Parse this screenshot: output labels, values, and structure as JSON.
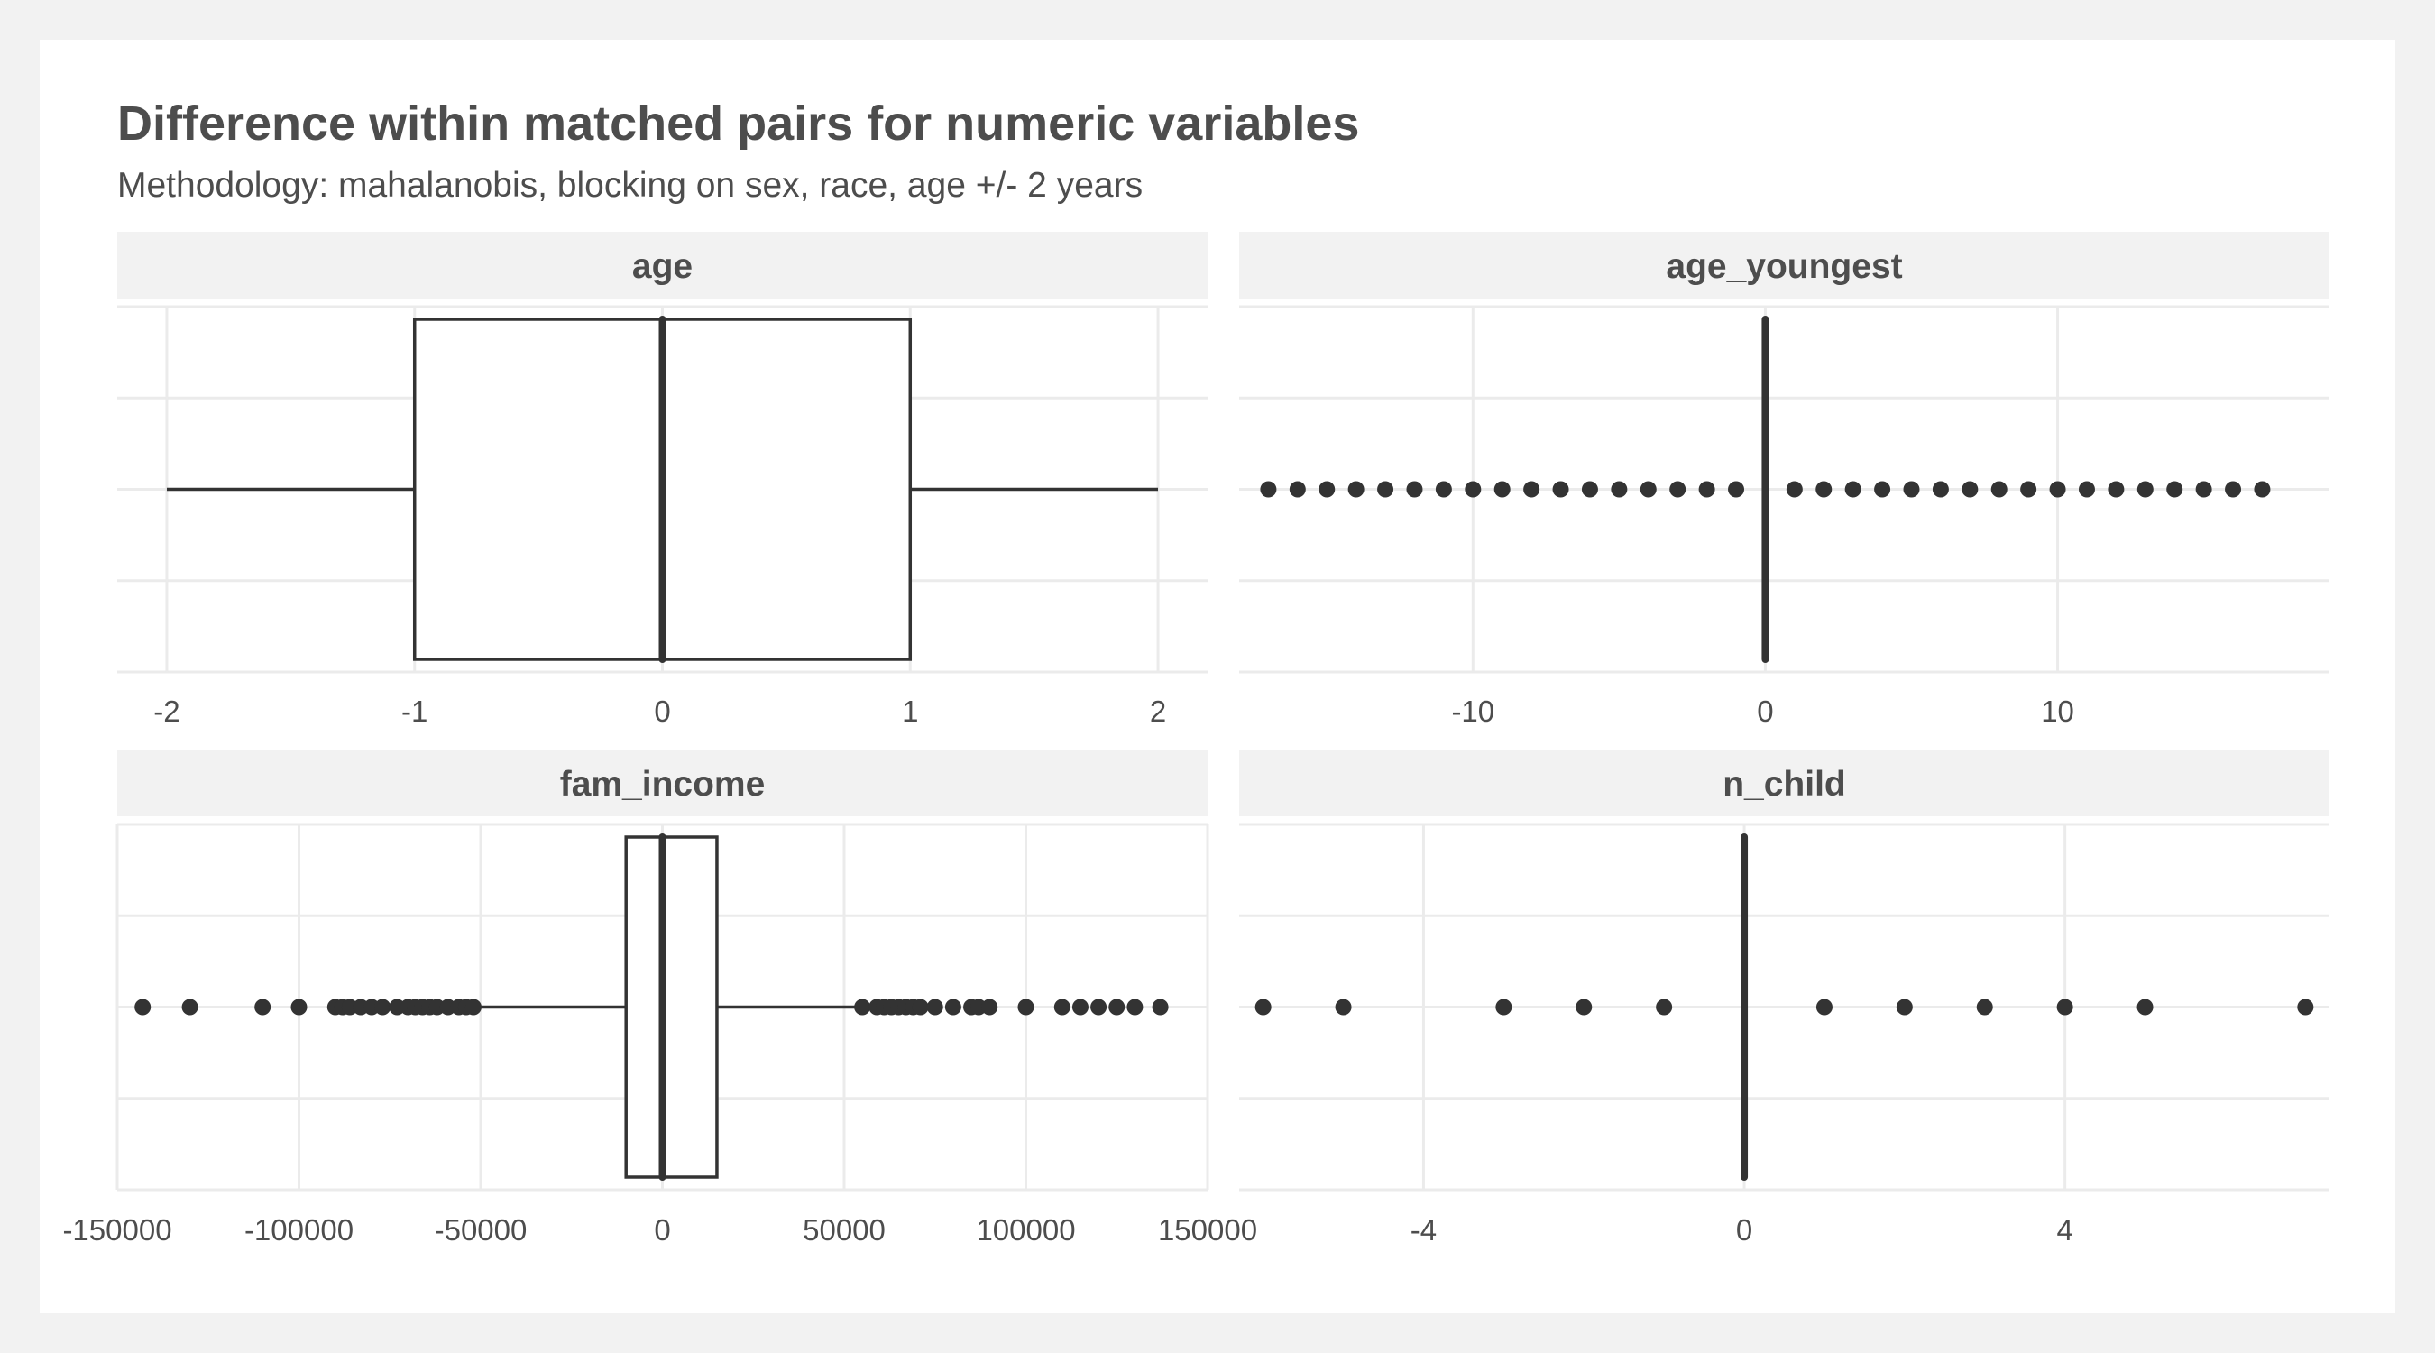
{
  "title": "Difference within matched pairs for numeric variables",
  "subtitle": "Methodology: mahalanobis, blocking on sex, race, age +/- 2 years",
  "colors": {
    "page_background": "#f2f2f2",
    "panel_background": "#ffffff",
    "strip_background": "#f2f2f2",
    "grid": "#ebebeb",
    "ink": "#333333",
    "text": "#4d4d4d"
  },
  "chart_data": [
    {
      "type": "boxplot",
      "panel": "age",
      "xlim": [
        -2.2,
        2.2
      ],
      "ticks": [
        -2,
        -1,
        0,
        1,
        2
      ],
      "tick_labels": [
        "-2",
        "-1",
        "0",
        "1",
        "2"
      ],
      "box": {
        "whisker_low": -2,
        "q1": -1,
        "median": 0,
        "q3": 1,
        "whisker_high": 2
      },
      "outliers": []
    },
    {
      "type": "boxplot",
      "panel": "age_youngest",
      "xlim": [
        -18,
        19.3
      ],
      "ticks": [
        -10,
        0,
        10
      ],
      "tick_labels": [
        "-10",
        "0",
        "10"
      ],
      "box": {
        "whisker_low": 0,
        "q1": 0,
        "median": 0,
        "q3": 0,
        "whisker_high": 0
      },
      "outliers": [
        -17,
        -16,
        -15,
        -14,
        -13,
        -12,
        -11,
        -10,
        -9,
        -8,
        -7,
        -6,
        -5,
        -4,
        -3,
        -2,
        -1,
        1,
        2,
        3,
        4,
        5,
        6,
        7,
        8,
        9,
        10,
        11,
        12,
        13,
        14,
        15,
        16,
        17
      ]
    },
    {
      "type": "boxplot",
      "panel": "fam_income",
      "xlim": [
        -150000,
        150000
      ],
      "ticks": [
        -150000,
        -100000,
        -50000,
        0,
        50000,
        100000,
        150000
      ],
      "tick_labels": [
        "-150000",
        "-100000",
        "-50000",
        "0",
        "50000",
        "100000",
        "150000"
      ],
      "box": {
        "whisker_low": -50000,
        "q1": -10000,
        "median": 0,
        "q3": 15000,
        "whisker_high": 53000
      },
      "outliers": [
        -143000,
        -130000,
        -110000,
        -100000,
        -90000,
        -88000,
        -86000,
        -83000,
        -80000,
        -77000,
        -73000,
        -70000,
        -68000,
        -66000,
        -64000,
        -62000,
        -59000,
        -56000,
        -54000,
        -52000,
        55000,
        59000,
        61000,
        63000,
        65000,
        67000,
        69000,
        71000,
        75000,
        80000,
        85000,
        87000,
        90000,
        100000,
        110000,
        115000,
        120000,
        125000,
        130000,
        137000
      ]
    },
    {
      "type": "boxplot",
      "panel": "n_child",
      "xlim": [
        -6.3,
        7.3
      ],
      "ticks": [
        -4,
        0,
        4
      ],
      "tick_labels": [
        "-4",
        "0",
        "4"
      ],
      "box": {
        "whisker_low": 0,
        "q1": 0,
        "median": 0,
        "q3": 0,
        "whisker_high": 0
      },
      "outliers": [
        -6,
        -5,
        -3,
        -2,
        -1,
        1,
        2,
        3,
        4,
        5,
        7
      ]
    }
  ]
}
